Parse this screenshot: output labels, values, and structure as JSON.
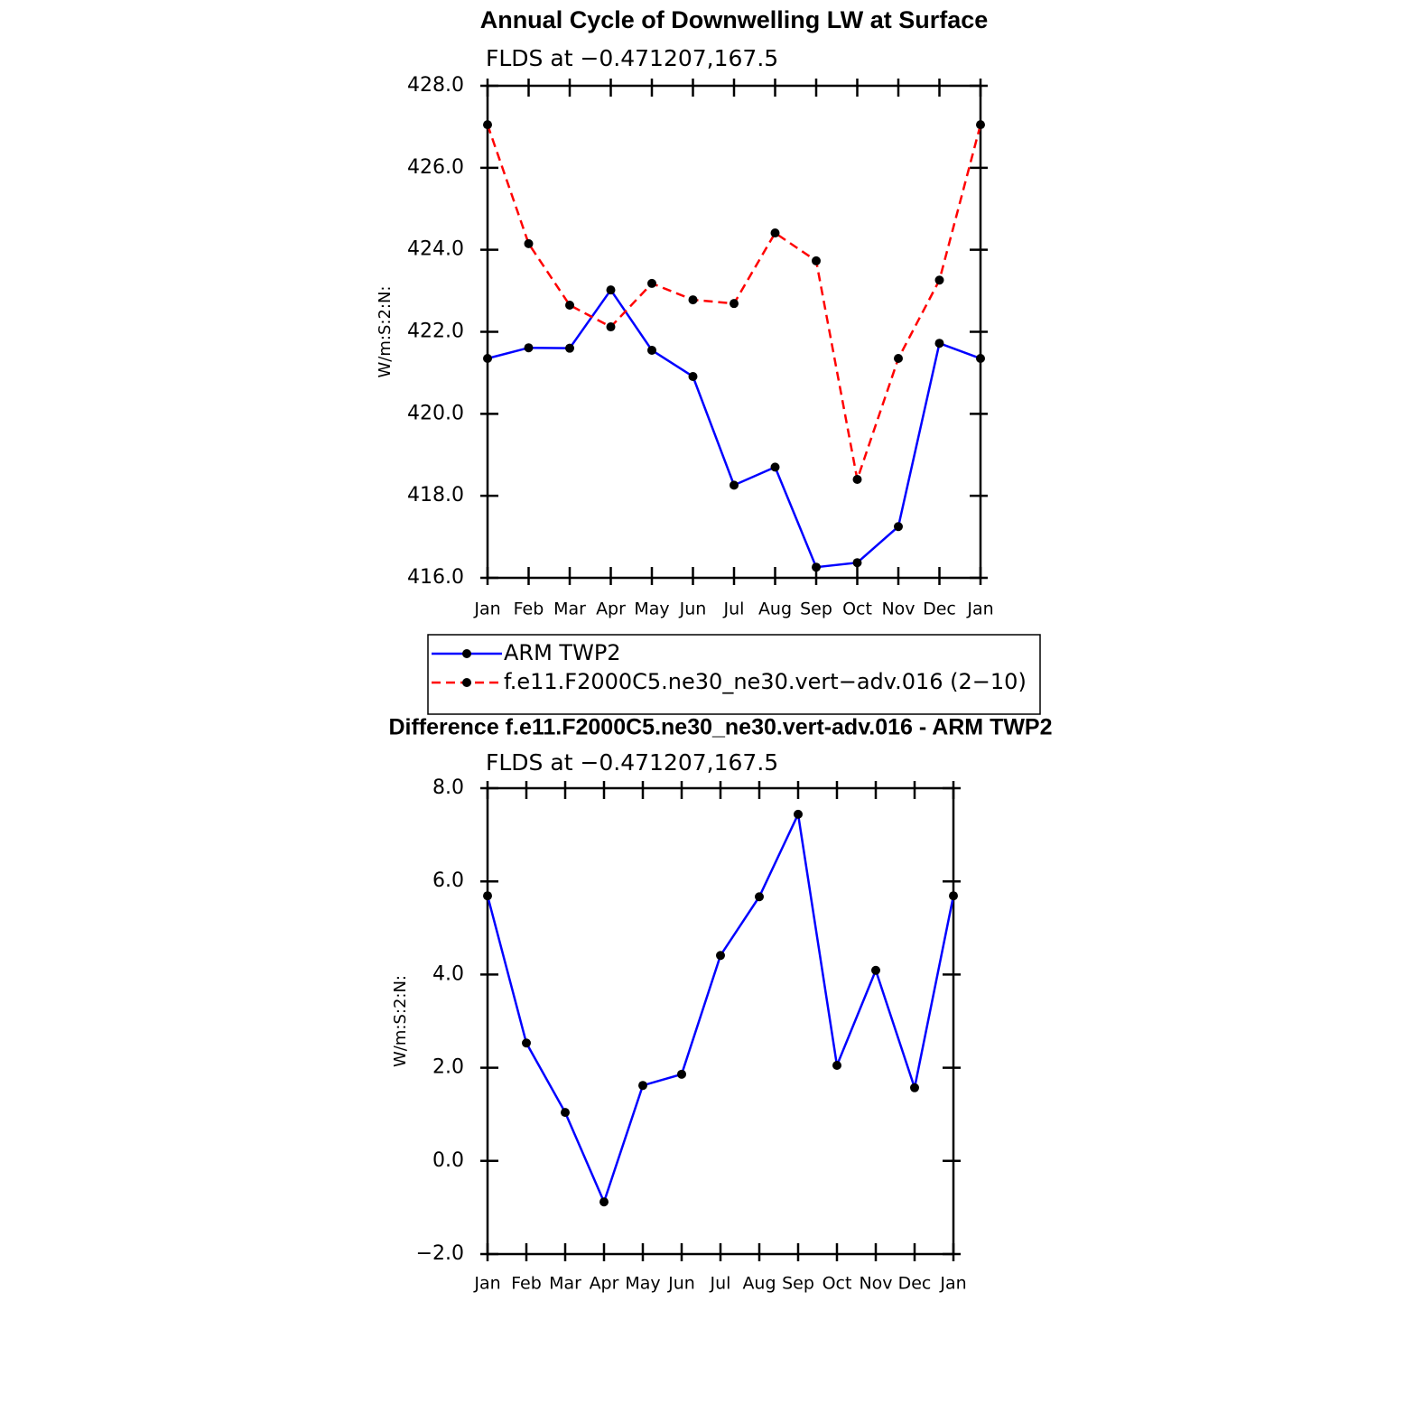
{
  "chart_data": [
    {
      "type": "line",
      "title": "Annual Cycle of Downwelling LW at Surface",
      "subtitle": "FLDS at −0.471207,167.5",
      "y_label": "W/m:S:2:N:",
      "categories": [
        "Jan",
        "Feb",
        "Mar",
        "Apr",
        "May",
        "Jun",
        "Jul",
        "Aug",
        "Sep",
        "Oct",
        "Nov",
        "Dec",
        "Jan"
      ],
      "series": [
        {
          "name": "ARM TWP2",
          "color": "#0000ff",
          "line_style": "solid",
          "values": [
            421.35,
            421.61,
            421.6,
            423.02,
            421.55,
            420.91,
            418.26,
            418.7,
            416.26,
            416.37,
            417.25,
            421.72,
            421.35
          ]
        },
        {
          "name": "f.e11.F2000C5.ne30_ne30.vert−adv.016 (2−10)",
          "color": "#ff0000",
          "line_style": "dashed",
          "values": [
            427.05,
            424.15,
            422.65,
            422.12,
            423.18,
            422.78,
            422.69,
            424.41,
            423.73,
            418.4,
            421.35,
            423.26,
            427.05
          ]
        }
      ],
      "ylim": [
        416,
        428
      ],
      "yticks": [
        {
          "value": 416,
          "label": "416.0"
        },
        {
          "value": 418,
          "label": "418.0"
        },
        {
          "value": 420,
          "label": "420.0"
        },
        {
          "value": 422,
          "label": "422.0"
        },
        {
          "value": 424,
          "label": "424.0"
        },
        {
          "value": 426,
          "label": "426.0"
        },
        {
          "value": 428,
          "label": "428.0"
        }
      ],
      "legend": "below"
    },
    {
      "type": "line",
      "title": "Difference f.e11.F2000C5.ne30_ne30.vert-adv.016 - ARM TWP2",
      "subtitle": "FLDS at −0.471207,167.5",
      "y_label": "W/m:S:2:N:",
      "categories": [
        "Jan",
        "Feb",
        "Mar",
        "Apr",
        "May",
        "Jun",
        "Jul",
        "Aug",
        "Sep",
        "Oct",
        "Nov",
        "Dec",
        "Jan"
      ],
      "series": [
        {
          "color": "#0000ff",
          "line_style": "solid",
          "values": [
            5.69,
            2.53,
            1.04,
            -0.88,
            1.62,
            1.86,
            4.41,
            5.67,
            7.44,
            2.05,
            4.09,
            1.57,
            5.69
          ]
        }
      ],
      "ylim": [
        -2,
        8
      ],
      "yticks": [
        {
          "value": -2,
          "label": "−2.0"
        },
        {
          "value": 0,
          "label": "0.0"
        },
        {
          "value": 2,
          "label": "2.0"
        },
        {
          "value": 4,
          "label": "4.0"
        },
        {
          "value": 6,
          "label": "6.0"
        },
        {
          "value": 8,
          "label": "8.0"
        }
      ]
    }
  ]
}
